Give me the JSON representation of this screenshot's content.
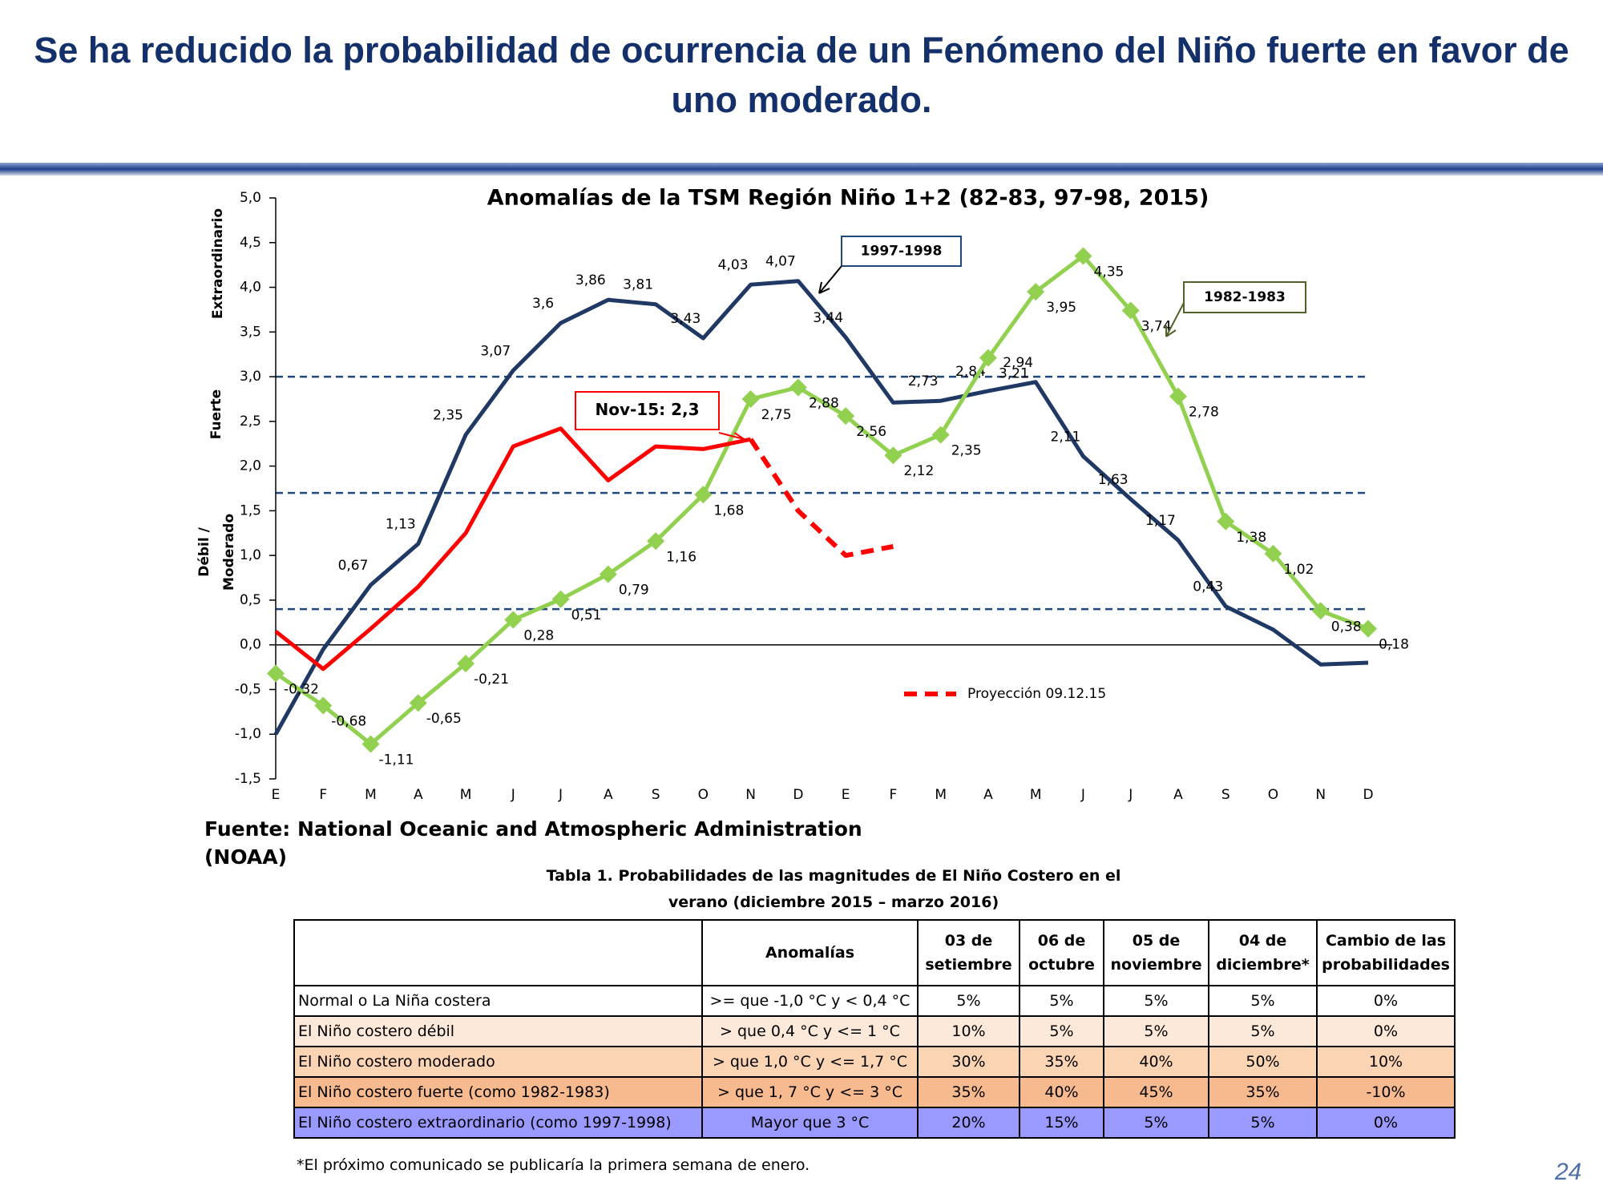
{
  "header": {
    "title": "Se ha reducido la probabilidad de ocurrencia de un Fenómeno del Niño fuerte en favor de uno moderado."
  },
  "chart_data": {
    "type": "line",
    "title": "Anomalías de la TSM Región Niño 1+2  (82-83, 97-98, 2015)",
    "categories": [
      "E",
      "F",
      "M",
      "A",
      "M",
      "J",
      "J",
      "A",
      "S",
      "O",
      "N",
      "D",
      "E",
      "F",
      "M",
      "A",
      "M",
      "J",
      "J",
      "A",
      "S",
      "O",
      "N",
      "D"
    ],
    "ylim": [
      -1.5,
      5
    ],
    "yticks": [
      {
        "value": -1.5,
        "label": "-1,5"
      },
      {
        "value": -1,
        "label": "-1,0"
      },
      {
        "value": -0.5,
        "label": "-0,5"
      },
      {
        "value": 0,
        "label": "0,0"
      },
      {
        "value": 0.5,
        "label": "0,5"
      },
      {
        "value": 1,
        "label": "1,0"
      },
      {
        "value": 1.5,
        "label": "1,5"
      },
      {
        "value": 2,
        "label": "2,0"
      },
      {
        "value": 2.5,
        "label": "2,5"
      },
      {
        "value": 3,
        "label": "3,0"
      },
      {
        "value": 3.5,
        "label": "3,5"
      },
      {
        "value": 4,
        "label": "4,0"
      },
      {
        "value": 4.5,
        "label": "4,5"
      },
      {
        "value": 5,
        "label": "5,0"
      }
    ],
    "thresholds": [
      0.4,
      1.7,
      3.0
    ],
    "threshold_color": "#1f497d",
    "band_labels": [
      "Extraordinario",
      "Fuerte",
      "Débil /",
      "Moderado"
    ],
    "series": [
      {
        "name": "1997-1998",
        "color": "#1f3864",
        "values": [
          -1.0,
          -0.05,
          0.67,
          1.13,
          2.35,
          3.07,
          3.6,
          3.86,
          3.81,
          3.43,
          4.03,
          4.07,
          3.44,
          2.71,
          2.73,
          2.84,
          2.94,
          2.11,
          1.63,
          1.17,
          0.43,
          0.17,
          -0.22,
          -0.2
        ],
        "value_labels": [
          null,
          null,
          "0,67",
          "1,13",
          "2,35",
          "3,07",
          "3,6",
          "3,86",
          "3,81",
          "3,43",
          "4,03",
          "4,07",
          "3,44",
          null,
          "2,73",
          "2,84",
          "2,94",
          "2,11",
          "1,63",
          "1,17",
          "0,43",
          null,
          null,
          null
        ]
      },
      {
        "name": "1982-1983",
        "color": "#92d050",
        "marker": "diamond",
        "values": [
          -0.32,
          -0.68,
          -1.11,
          -0.65,
          -0.21,
          0.28,
          0.51,
          0.79,
          1.16,
          1.68,
          2.75,
          2.88,
          2.56,
          2.12,
          2.35,
          3.21,
          3.95,
          4.35,
          3.74,
          2.78,
          1.38,
          1.02,
          0.38,
          0.18
        ],
        "value_labels": [
          "-0,32",
          "-0,68",
          "-1,11",
          "-0,65",
          "-0,21",
          "0,28",
          "0,51",
          "0,79",
          "1,16",
          "1,68",
          "2,75",
          "2,88",
          "2,56",
          "2,12",
          "2,35",
          "3,21",
          "3,95",
          "4,35",
          "3,74",
          "2,78",
          "1,38",
          "1,02",
          "0,38",
          "0,18"
        ]
      },
      {
        "color": "#ff0000",
        "values": [
          0.15,
          -0.27,
          0.18,
          0.65,
          1.25,
          2.22,
          2.42,
          1.84,
          2.22,
          2.19,
          2.3,
          null,
          null,
          null,
          null,
          null,
          null,
          null,
          null,
          null,
          null,
          null,
          null,
          null
        ]
      },
      {
        "name": "Proyección 09.12.15",
        "color": "#ff0000",
        "dashed": true,
        "values": [
          null,
          null,
          null,
          null,
          null,
          null,
          null,
          null,
          null,
          null,
          2.3,
          1.5,
          1.0,
          1.1,
          null,
          null,
          null,
          null,
          null,
          null,
          null,
          null,
          null,
          null
        ]
      }
    ],
    "annotation": "Nov-15: 2,3"
  },
  "source": [
    "Fuente:  National Oceanic and Atmospheric Administration",
    "(NOAA)"
  ],
  "table": {
    "title": [
      "Tabla 1. Probabilidades de las magnitudes de El Niño Costero en el",
      "verano (diciembre 2015 – marzo 2016)"
    ],
    "header": [
      "",
      "Anomalías",
      "03 de setiembre",
      "06 de octubre",
      "05 de noviembre",
      "04 de diciembre*",
      "Cambio de las probabilidades"
    ],
    "rows": [
      [
        "Normal o La Niña costera",
        ">= que -1,0 °C y < 0,4 °C",
        "5%",
        "5%",
        "5%",
        "5%",
        "0%"
      ],
      [
        "El Niño costero débil",
        "> que 0,4 °C y <= 1 °C",
        "10%",
        "5%",
        "5%",
        "5%",
        "0%"
      ],
      [
        "El Niño costero moderado",
        "> que 1,0 °C y <= 1,7 °C",
        "30%",
        "35%",
        "40%",
        "50%",
        "10%"
      ],
      [
        "El Niño costero fuerte (como 1982-1983)",
        "> que 1, 7 °C y <= 3 °C",
        "35%",
        "40%",
        "45%",
        "35%",
        "-10%"
      ],
      [
        "El Niño costero extraordinario (como 1997-1998)",
        "Mayor que 3 °C",
        "20%",
        "15%",
        "5%",
        "5%",
        "0%"
      ]
    ],
    "row_colors": [
      "#ffffff",
      "#fde9d9",
      "#fbd4b4",
      "#f7b98e",
      "#9999ff"
    ]
  },
  "footnote": "*El próximo comunicado se publicaría la primera semana de enero.",
  "page_number": "24"
}
